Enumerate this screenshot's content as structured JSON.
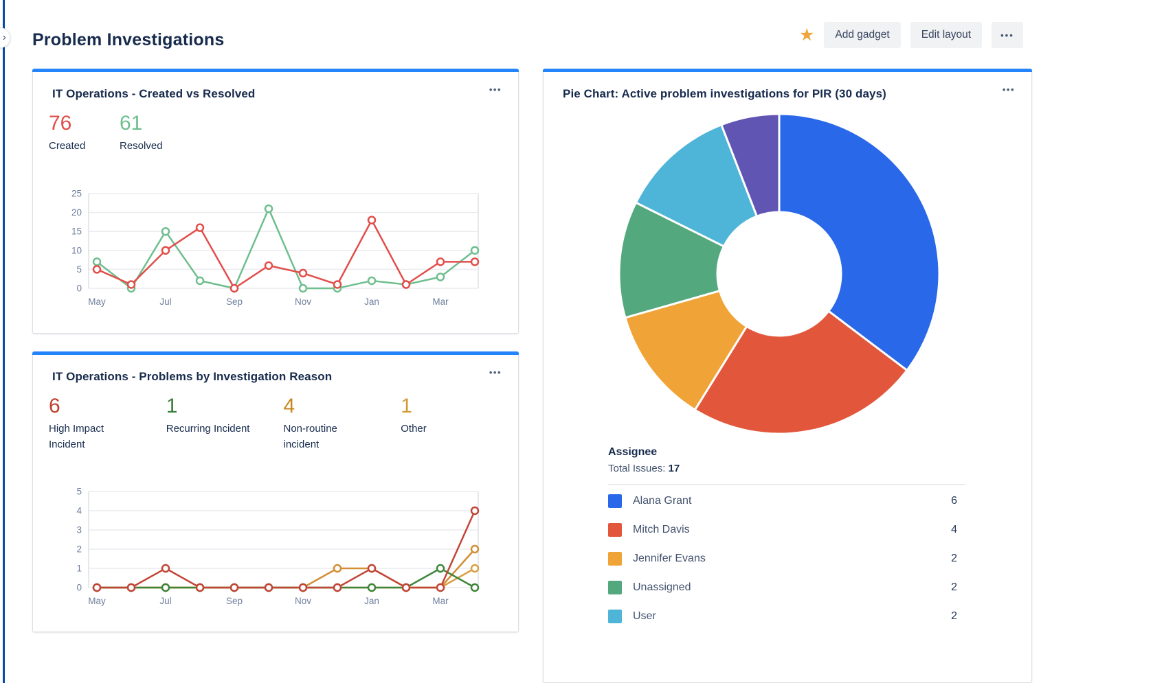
{
  "page": {
    "title": "Problem Investigations"
  },
  "icons": {
    "more": "•••",
    "star": "★",
    "chevron": "›"
  },
  "header": {
    "add_gadget": "Add gadget",
    "edit_layout": "Edit layout"
  },
  "gadgets": {
    "created_vs_resolved": {
      "title": "IT Operations - Created vs Resolved",
      "stats": [
        {
          "value": "76",
          "label": "Created",
          "color": "#E14E4A"
        },
        {
          "value": "61",
          "label": "Resolved",
          "color": "#6FBE8E"
        }
      ]
    },
    "problems_by_reason": {
      "title": "IT Operations - Problems by Investigation Reason",
      "stats": [
        {
          "value": "6",
          "label": "High Impact\nIncident",
          "color": "#C2402F"
        },
        {
          "value": "1",
          "label": "Recurring Incident",
          "color": "#3A7D3C"
        },
        {
          "value": "4",
          "label": "Non-routine\nincident",
          "color": "#C8861E"
        },
        {
          "value": "1",
          "label": "Other",
          "color": "#D49A36"
        }
      ]
    },
    "pie": {
      "title": "Pie Chart: Active problem investigations for PIR (30 days)",
      "group_label": "Assignee",
      "total_label": "Total Issues:",
      "total_value": "17",
      "legend": [
        {
          "label": "Alana Grant",
          "value": "6",
          "color": "#2968E8"
        },
        {
          "label": "Mitch Davis",
          "value": "4",
          "color": "#E2573C"
        },
        {
          "label": "Jennifer Evans",
          "value": "2",
          "color": "#F0A437"
        },
        {
          "label": "Unassigned",
          "value": "2",
          "color": "#53A87E"
        },
        {
          "label": "User",
          "value": "2",
          "color": "#4FB5D8"
        }
      ]
    }
  },
  "chart_data": [
    {
      "type": "line",
      "title": "IT Operations - Created vs Resolved",
      "x": [
        "May",
        "Jun",
        "Jul",
        "Aug",
        "Sep",
        "Oct",
        "Nov",
        "Dec",
        "Jan",
        "Feb",
        "Mar",
        "Apr"
      ],
      "x_ticks_shown": [
        "May",
        "Jul",
        "Sep",
        "Nov",
        "Jan",
        "Mar"
      ],
      "ylim": [
        0,
        25
      ],
      "yticks": [
        0,
        5,
        10,
        15,
        20,
        25
      ],
      "grid": true,
      "legend_position": "none",
      "series": [
        {
          "name": "Created",
          "color": "#E14E4A",
          "values": [
            5,
            1,
            10,
            16,
            0,
            6,
            4,
            1,
            18,
            1,
            7,
            7
          ]
        },
        {
          "name": "Resolved",
          "color": "#6FBE8E",
          "values": [
            7,
            0,
            15,
            2,
            0,
            21,
            0,
            0,
            2,
            1,
            3,
            10
          ]
        }
      ]
    },
    {
      "type": "line",
      "title": "IT Operations - Problems by Investigation Reason",
      "x": [
        "May",
        "Jun",
        "Jul",
        "Aug",
        "Sep",
        "Oct",
        "Nov",
        "Dec",
        "Jan",
        "Feb",
        "Mar",
        "Apr"
      ],
      "x_ticks_shown": [
        "May",
        "Jul",
        "Sep",
        "Nov",
        "Jan",
        "Mar"
      ],
      "ylim": [
        0,
        5
      ],
      "yticks": [
        0,
        1,
        2,
        3,
        4,
        5
      ],
      "grid": true,
      "legend_position": "none",
      "series": [
        {
          "name": "High Impact Incident",
          "color": "#C14537",
          "values": [
            0,
            0,
            1,
            0,
            0,
            0,
            0,
            0,
            1,
            0,
            0,
            4
          ]
        },
        {
          "name": "Recurring Incident",
          "color": "#3E8539",
          "values": [
            0,
            0,
            0,
            0,
            0,
            0,
            0,
            0,
            0,
            0,
            1,
            0
          ]
        },
        {
          "name": "Non-routine incident",
          "color": "#D28E35",
          "values": [
            0,
            0,
            0,
            0,
            0,
            0,
            0,
            1,
            1,
            0,
            0,
            2
          ]
        },
        {
          "name": "Other",
          "color": "#DA9E43",
          "values": [
            0,
            0,
            0,
            0,
            0,
            0,
            0,
            0,
            0,
            0,
            0,
            1
          ]
        }
      ]
    },
    {
      "type": "pie",
      "title": "Pie Chart: Active problem investigations for PIR (30 days)",
      "donut": true,
      "total": 17,
      "start_angle_deg": -90,
      "direction": "clockwise",
      "slices": [
        {
          "label": "Alana Grant",
          "value": 6,
          "color": "#2968E8"
        },
        {
          "label": "Mitch Davis",
          "value": 4,
          "color": "#E2573C"
        },
        {
          "label": "Jennifer Evans",
          "value": 2,
          "color": "#F0A437"
        },
        {
          "label": "Unassigned",
          "value": 2,
          "color": "#53A87E"
        },
        {
          "label": "User",
          "value": 2,
          "color": "#4FB5D8"
        },
        {
          "label": "",
          "value": 1,
          "color": "#6155B4"
        }
      ]
    }
  ]
}
